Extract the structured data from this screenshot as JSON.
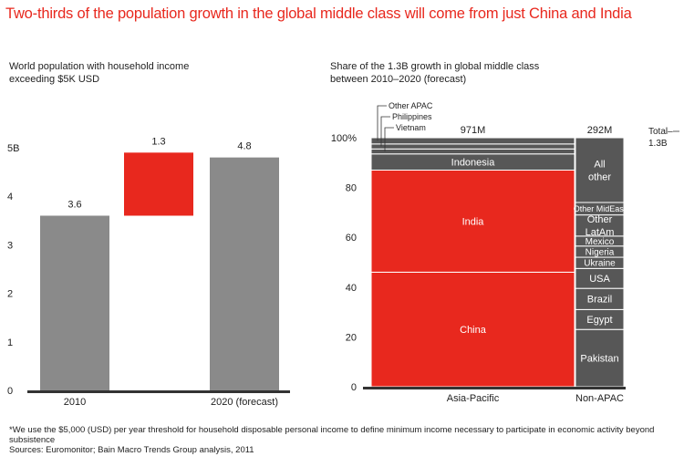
{
  "headline": "Two-thirds of the population growth in the global middle class will come from just China and India",
  "footnote": "*We use the $5,000 (USD) per year threshold for household disposable personal income to define minimum income necessary to participate in economic activity beyond subsistence",
  "sources": "Sources: Euromonitor; Bain Macro Trends Group analysis, 2011",
  "colors": {
    "red": "#e8281e",
    "gray": "#8a8a8a",
    "dark": "#575757",
    "axis": "#333333"
  },
  "chart_data": [
    {
      "type": "bar",
      "subtype": "waterfall",
      "title": "World population with household income exceeding $5K USD",
      "categories": [
        "2010",
        "",
        "2020 (forecast)"
      ],
      "values": [
        3.6,
        1.3,
        4.8
      ],
      "value_labels": [
        "3.6",
        "1.3",
        "4.8"
      ],
      "bases": [
        0,
        3.6,
        0
      ],
      "bar_colors": [
        "gray",
        "red",
        "gray"
      ],
      "ylim": [
        0,
        5
      ],
      "yticks": [
        0,
        1,
        2,
        3,
        4,
        5
      ],
      "ytick_labels": [
        "0",
        "1",
        "2",
        "3",
        "4",
        "5B"
      ]
    },
    {
      "type": "bar",
      "subtype": "marimekko",
      "title": "Share of the 1.3B growth in global middle class between 2010–2020 (forecast)",
      "ylim": [
        0,
        100
      ],
      "yticks": [
        0,
        20,
        40,
        60,
        80,
        100
      ],
      "ytick_labels": [
        "0",
        "20",
        "40",
        "60",
        "80",
        "100%"
      ],
      "columns": [
        {
          "name": "Asia-Pacific",
          "total_label": "971M",
          "total": 971,
          "segments": [
            {
              "name": "China",
              "value": 46,
              "color": "red"
            },
            {
              "name": "India",
              "value": 41,
              "color": "red"
            },
            {
              "name": "Indonesia",
              "value": 6.5,
              "color": "dark"
            },
            {
              "name": "Vietnam",
              "value": 2,
              "color": "dark"
            },
            {
              "name": "Philippines",
              "value": 2,
              "color": "dark"
            },
            {
              "name": "Other APAC",
              "value": 2.5,
              "color": "dark"
            }
          ]
        },
        {
          "name": "Non-APAC",
          "total_label": "292M",
          "total": 292,
          "segments": [
            {
              "name": "Pakistan",
              "value": 23,
              "color": "dark"
            },
            {
              "name": "Egypt",
              "value": 8,
              "color": "dark"
            },
            {
              "name": "Brazil",
              "value": 8.5,
              "color": "dark"
            },
            {
              "name": "USA",
              "value": 8,
              "color": "dark"
            },
            {
              "name": "Ukraine",
              "value": 4.5,
              "color": "dark"
            },
            {
              "name": "Nigeria",
              "value": 4.5,
              "color": "dark"
            },
            {
              "name": "Mexico",
              "value": 4,
              "color": "dark"
            },
            {
              "name": "Other LatAm",
              "value": 8.5,
              "color": "dark"
            },
            {
              "name": "Other MidEast",
              "value": 5,
              "color": "dark"
            },
            {
              "name": "All other",
              "value": 26,
              "color": "dark"
            }
          ]
        }
      ],
      "total_annotation": "Total–1.3B"
    }
  ]
}
